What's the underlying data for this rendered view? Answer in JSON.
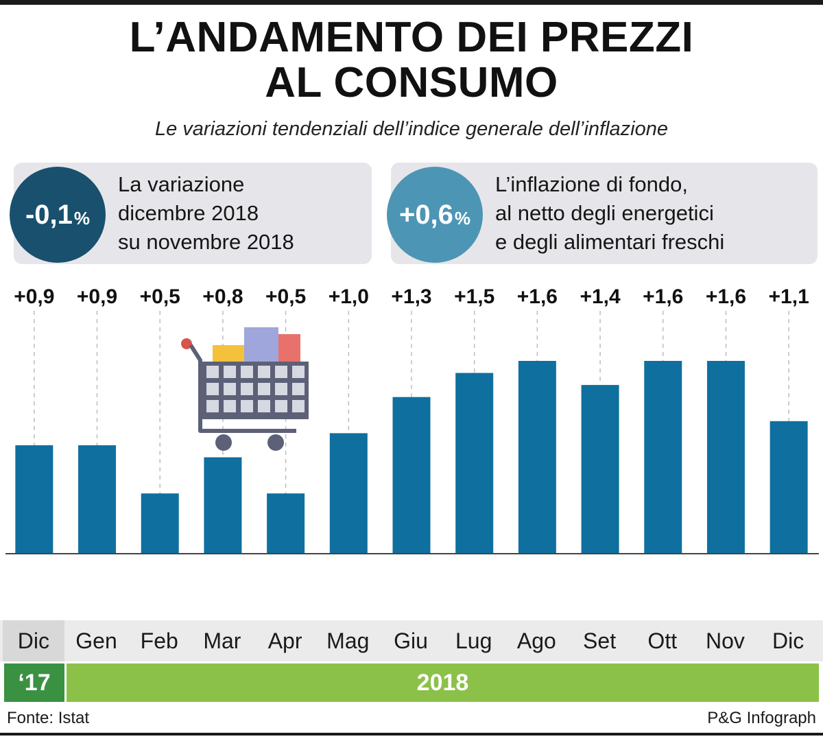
{
  "title_line1": "L’ANDAMENTO DEI PREZZI",
  "title_line2": "AL CONSUMO",
  "subtitle": "Le variazioni tendenziali dell’indice generale dell’inflazione",
  "box1": {
    "value": "-0,1",
    "unit": "%",
    "lines": [
      "La variazione",
      "dicembre 2018",
      "su novembre 2018"
    ],
    "color": "#19506e"
  },
  "box2": {
    "value": "+0,6",
    "unit": "%",
    "lines": [
      "L’inflazione di fondo,",
      "al netto degli energetici",
      "e degli alimentari freschi"
    ],
    "color": "#4d95b5"
  },
  "chart_data": {
    "type": "bar",
    "categories": [
      "Dic",
      "Gen",
      "Feb",
      "Mar",
      "Apr",
      "Mag",
      "Giu",
      "Lug",
      "Ago",
      "Set",
      "Ott",
      "Nov",
      "Dic"
    ],
    "values": [
      0.9,
      0.9,
      0.5,
      0.8,
      0.5,
      1.0,
      1.3,
      1.5,
      1.6,
      1.4,
      1.6,
      1.6,
      1.1
    ],
    "value_labels": [
      "+0,9",
      "+0,9",
      "+0,5",
      "+0,8",
      "+0,5",
      "+1,0",
      "+1,3",
      "+1,5",
      "+1,6",
      "+1,4",
      "+1,6",
      "+1,6",
      "+1,1"
    ],
    "ylim": [
      0,
      1.6
    ],
    "bar_color": "#0f6f9f",
    "grid": false
  },
  "years": {
    "first": "‘17",
    "second": "2018",
    "first_color": "#3a9142",
    "second_color": "#8cc149"
  },
  "source": "Fonte: Istat",
  "credit": "P&G Infograph",
  "icons": [
    "shopping-cart-icon"
  ]
}
